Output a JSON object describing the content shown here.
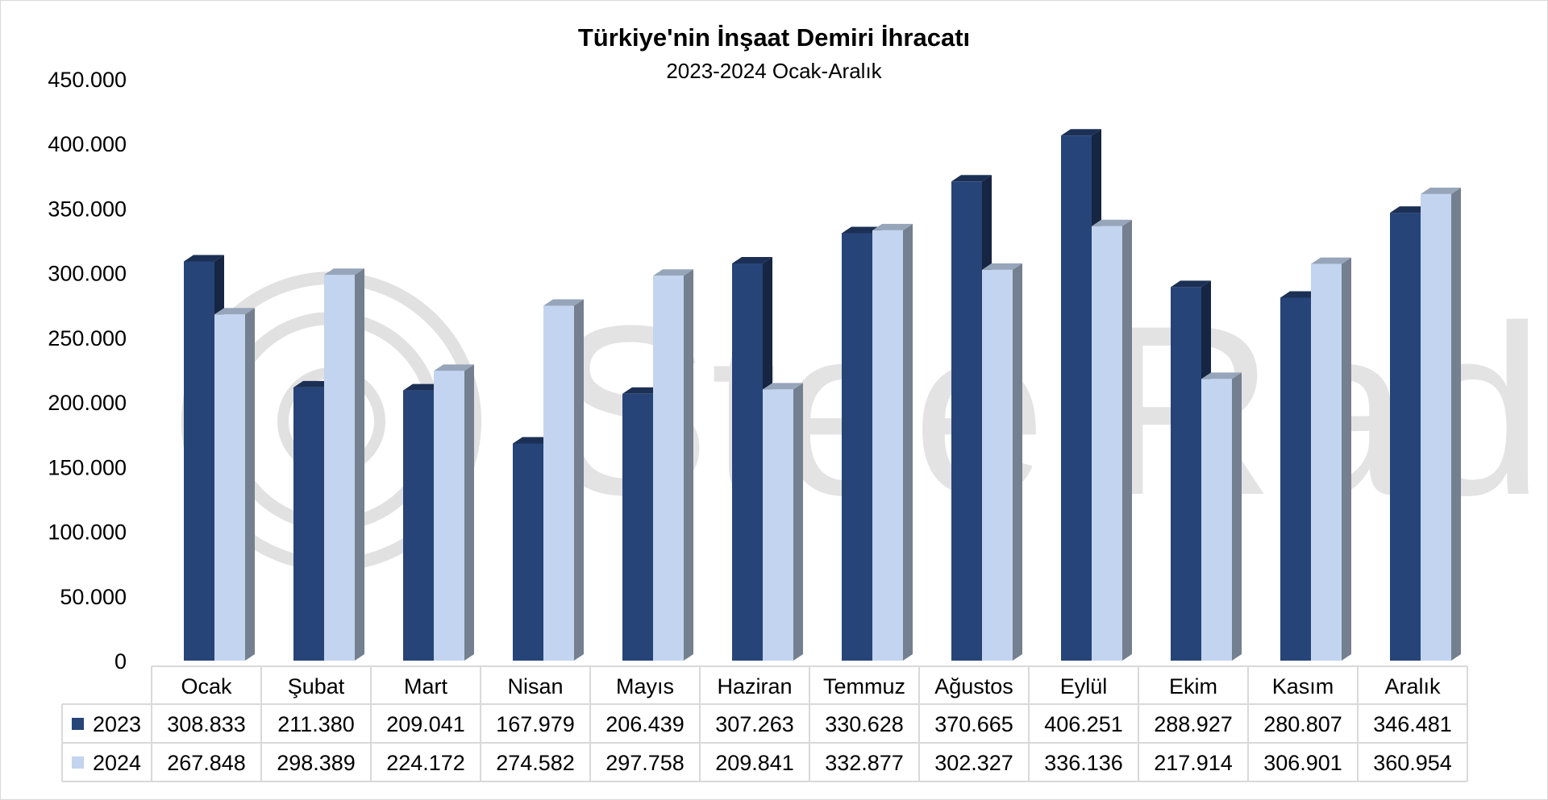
{
  "watermark": {
    "text": "SteelRadar",
    "color": "#c8c8c8"
  },
  "chart_data": {
    "type": "bar",
    "style": "3d-clustered-column-with-data-table",
    "title": "Türkiye'nin İnşaat Demiri İhracatı",
    "subtitle": "2023-2024 Ocak-Aralık",
    "xlabel": "",
    "ylabel": "",
    "ylim": [
      0,
      450000
    ],
    "yticks": [
      0,
      50000,
      100000,
      150000,
      200000,
      250000,
      300000,
      350000,
      400000,
      450000
    ],
    "ytick_labels": [
      "0",
      "50.000",
      "100.000",
      "150.000",
      "200.000",
      "250.000",
      "300.000",
      "350.000",
      "400.000",
      "450.000"
    ],
    "grid": false,
    "legend": "data-table",
    "categories": [
      "Ocak",
      "Şubat",
      "Mart",
      "Nisan",
      "Mayıs",
      "Haziran",
      "Temmuz",
      "Ağustos",
      "Eylül",
      "Ekim",
      "Kasım",
      "Aralık"
    ],
    "series": [
      {
        "name": "2023",
        "color": "#264478",
        "values": [
          308833,
          211380,
          209041,
          167979,
          206439,
          307263,
          330628,
          370665,
          406251,
          288927,
          280807,
          346481
        ],
        "labels": [
          "308.833",
          "211.380",
          "209.041",
          "167.979",
          "206.439",
          "307.263",
          "330.628",
          "370.665",
          "406.251",
          "288.927",
          "280.807",
          "346.481"
        ]
      },
      {
        "name": "2024",
        "color": "#c2d4ef",
        "values": [
          267848,
          298389,
          224172,
          274582,
          297758,
          209841,
          332877,
          302327,
          336136,
          217914,
          306901,
          360954
        ],
        "labels": [
          "267.848",
          "298.389",
          "224.172",
          "274.582",
          "297.758",
          "209.841",
          "332.877",
          "302.327",
          "336.136",
          "217.914",
          "306.901",
          "360.954"
        ]
      }
    ]
  }
}
